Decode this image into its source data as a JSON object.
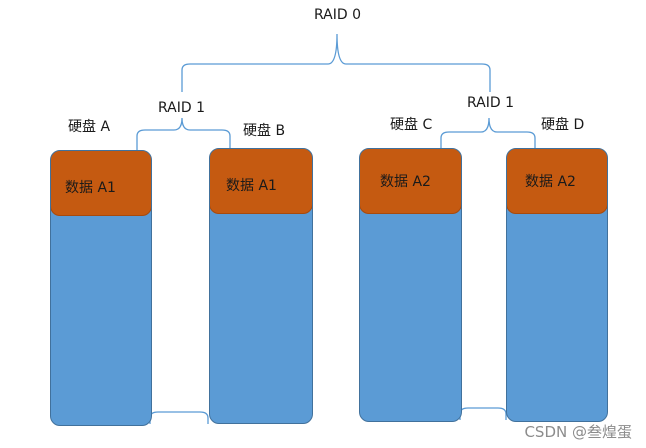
{
  "title": "RAID 0",
  "groups": [
    {
      "label": "RAID 1",
      "disks": [
        {
          "name": "硬盘 A",
          "data": "数据 A1"
        },
        {
          "name": "硬盘 B",
          "data": "数据 A1"
        }
      ]
    },
    {
      "label": "RAID 1",
      "disks": [
        {
          "name": "硬盘 C",
          "data": "数据 A2"
        },
        {
          "name": "硬盘 D",
          "data": "数据 A2"
        }
      ]
    }
  ],
  "watermark": "CSDN @叁煌蛋",
  "colors": {
    "disk_body": "#5b9bd5",
    "disk_top": "#c55a11",
    "connector": "#5b9bd5"
  }
}
